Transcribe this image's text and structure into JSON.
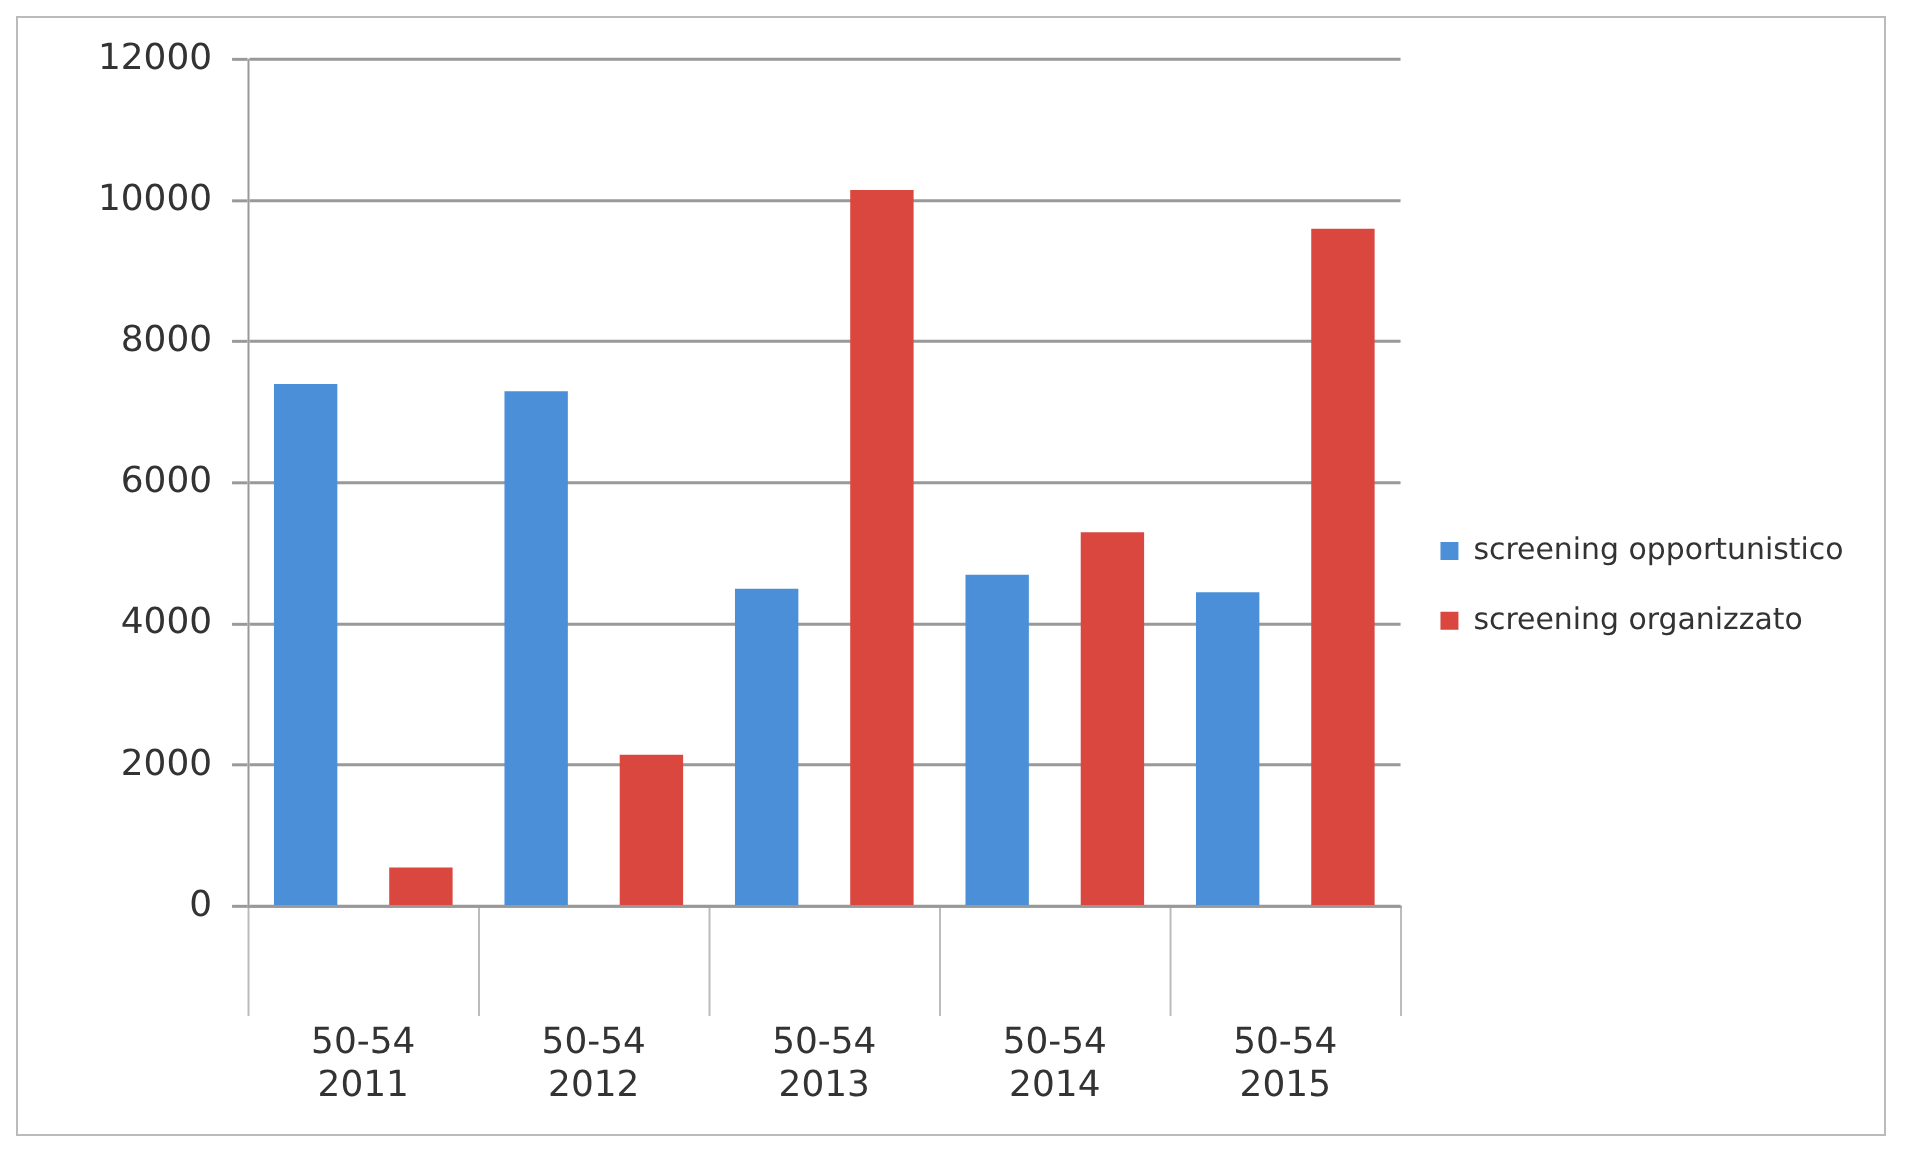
{
  "chart_data": {
    "type": "bar",
    "categories": [
      "50-54 2011",
      "50-54 2012",
      "50-54 2013",
      "50-54 2014",
      "50-54 2015"
    ],
    "series": [
      {
        "name": "screening opportunistico",
        "color": "#4a8fd8",
        "values": [
          7400,
          7300,
          4500,
          4700,
          4450
        ]
      },
      {
        "name": "screening organizzato",
        "color": "#d9473f",
        "values": [
          550,
          2150,
          10150,
          5300,
          9600
        ]
      }
    ],
    "ylim": [
      0,
      12000
    ],
    "yticks": [
      0,
      2000,
      4000,
      6000,
      8000,
      10000,
      12000
    ],
    "grid": "y",
    "legend": "right"
  }
}
